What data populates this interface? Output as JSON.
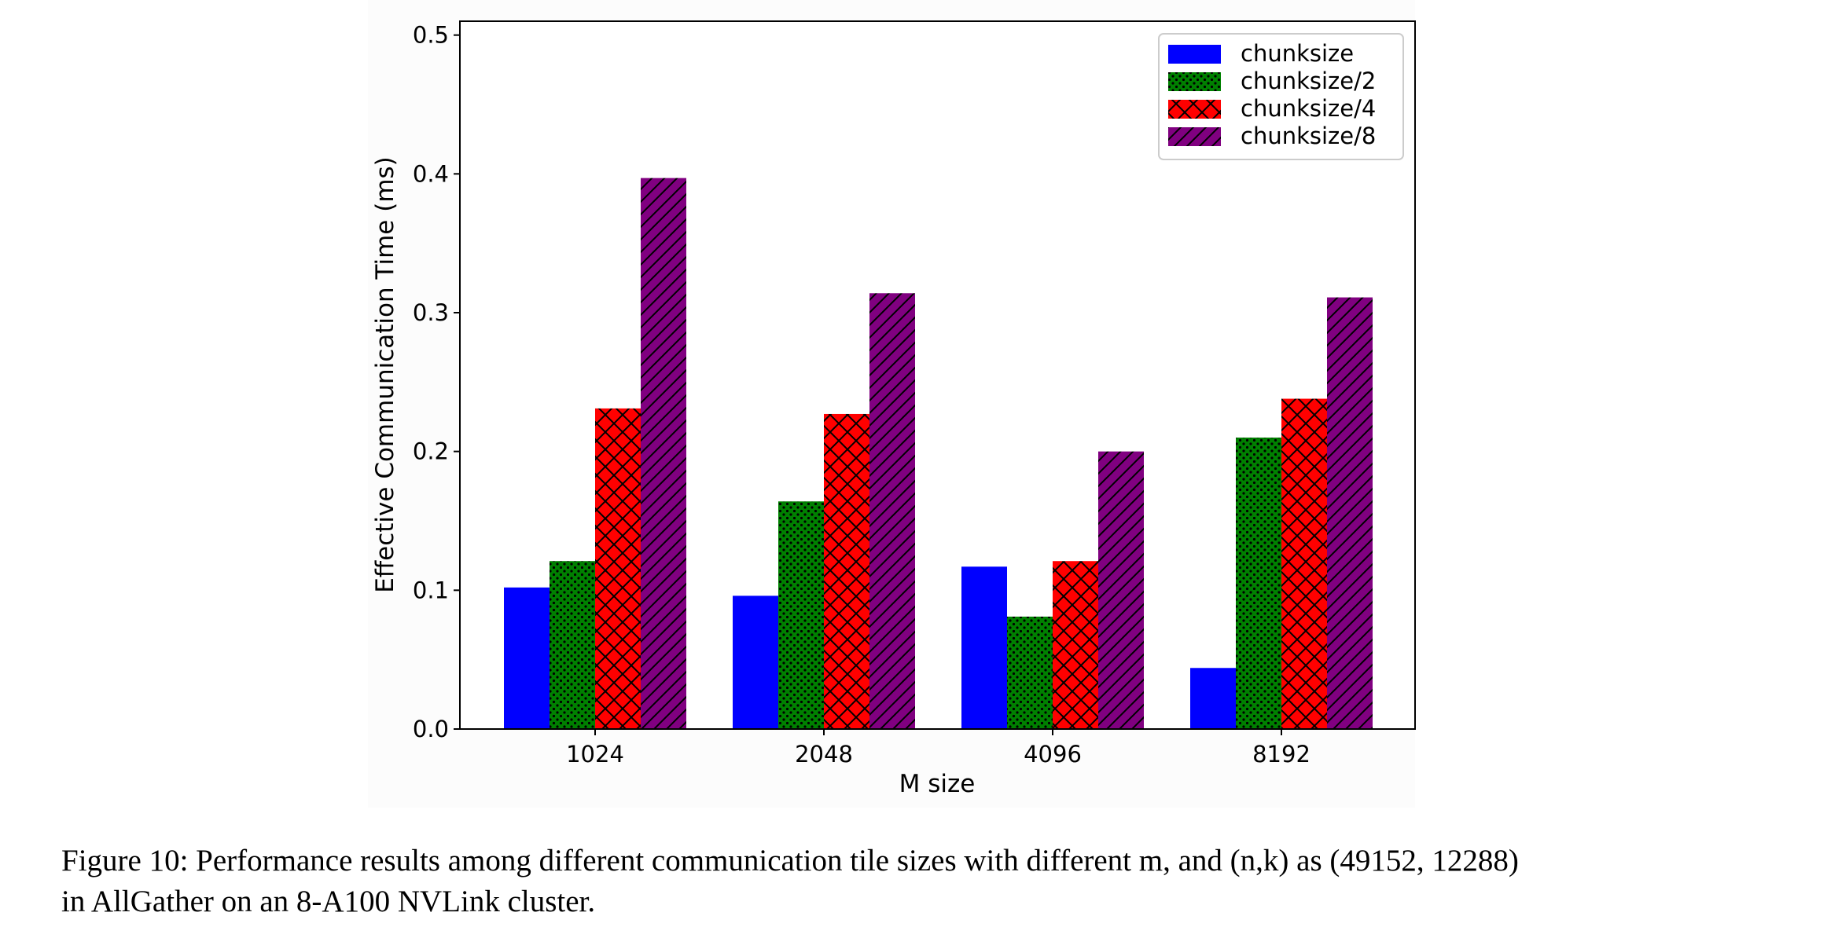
{
  "chart_data": {
    "type": "bar",
    "categories": [
      "1024",
      "2048",
      "4096",
      "8192"
    ],
    "series": [
      {
        "name": "chunksize",
        "values": [
          0.102,
          0.096,
          0.117,
          0.044
        ],
        "color": "#0000ff",
        "hatch": "none"
      },
      {
        "name": "chunksize/2",
        "values": [
          0.121,
          0.164,
          0.081,
          0.21
        ],
        "color": "#008000",
        "hatch": "dots"
      },
      {
        "name": "chunksize/4",
        "values": [
          0.231,
          0.227,
          0.121,
          0.238
        ],
        "color": "#ff0000",
        "hatch": "crosshatch"
      },
      {
        "name": "chunksize/8",
        "values": [
          0.397,
          0.314,
          0.2,
          0.311
        ],
        "color": "#800080",
        "hatch": "diagonal"
      }
    ],
    "xlabel": "M size",
    "ylabel": "Effective Communication Time (ms)",
    "ylim": [
      0,
      0.51
    ],
    "yticks": [
      "0.0",
      "0.1",
      "0.2",
      "0.3",
      "0.4",
      "0.5"
    ],
    "legend": "top-right",
    "grid": false
  },
  "caption": {
    "line1": "Figure 10: Performance results among different communication tile sizes with different m, and (n,k) as (49152, 12288)",
    "line2": "in AllGather on an 8-A100 NVLink cluster."
  }
}
